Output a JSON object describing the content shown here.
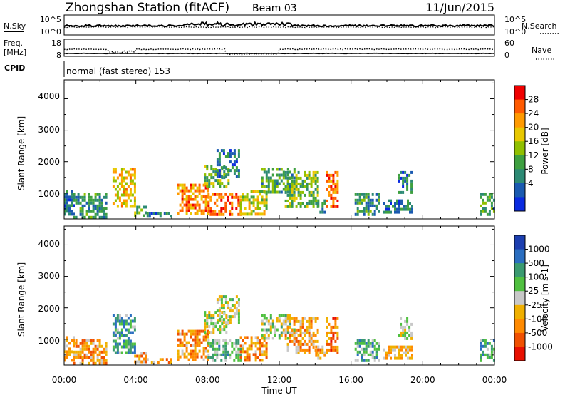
{
  "header": {
    "station": "Zhongshan Station (fitACF)",
    "beam": "Beam 03",
    "date": "11/Jun/2015"
  },
  "strip_sky": {
    "left_label": "N.Sky",
    "right_label": "N.Search",
    "ticks_left": [
      "10^5",
      "10^0"
    ],
    "ticks_right": [
      "10^5",
      "10^0"
    ]
  },
  "strip_freq": {
    "left_label_1": "Freq.",
    "left_label_2": "[MHz]",
    "right_label": "Nave",
    "ticks_left": [
      "18",
      "8"
    ],
    "ticks_right": [
      "60",
      "0"
    ]
  },
  "strip_cpid": {
    "left_label": "CPID",
    "mode_text": "normal (fast stereo) 153"
  },
  "x_axis": {
    "label": "Time UT",
    "ticks": [
      "00:00",
      "04:00",
      "08:00",
      "12:00",
      "16:00",
      "20:00",
      "00:00"
    ]
  },
  "panel_power": {
    "ylabel": "Slant Range [km]",
    "yticks": [
      "4000",
      "3000",
      "2000",
      "1000"
    ],
    "colorbar_label": "Power [dB]",
    "colorbar_ticks": [
      "28",
      "24",
      "20",
      "16",
      "12",
      "8",
      "4"
    ],
    "colors": [
      "#f00000",
      "#ff5a00",
      "#ff9a00",
      "#e8c800",
      "#90c000",
      "#3ea040",
      "#2c8a74",
      "#1a5ab0",
      "#0a2ae0"
    ]
  },
  "panel_velocity": {
    "ylabel": "Slant Range [km]",
    "yticks": [
      "4000",
      "3000",
      "2000",
      "1000"
    ],
    "colorbar_label": "Velocity [m s-1]",
    "colorbar_ticks": [
      "1000",
      "500",
      "100",
      "25",
      "-25",
      "-100",
      "-500",
      "-1000"
    ],
    "colors": [
      "#1c3fb0",
      "#2a6ec0",
      "#3a9a70",
      "#50c040",
      "#c8c8c8",
      "#f0b000",
      "#ff8a00",
      "#f05000",
      "#e81000"
    ]
  },
  "chart_data": {
    "type": "heatmap",
    "x_range_hours": [
      0,
      24
    ],
    "y_range_km": [
      180,
      4600
    ],
    "power_db_range": [
      0,
      32
    ],
    "velocity_range": [
      -1200,
      1200
    ],
    "echo_regions": [
      {
        "t0": 0.0,
        "t1": 0.5,
        "r0": 300,
        "r1": 1100,
        "power": 8,
        "vel": -300
      },
      {
        "t0": 0.5,
        "t1": 2.3,
        "r0": 250,
        "r1": 1000,
        "power": 10,
        "vel": -400
      },
      {
        "t0": 2.7,
        "t1": 4.0,
        "r0": 600,
        "r1": 1800,
        "power": 20,
        "vel": 500
      },
      {
        "t0": 3.9,
        "t1": 4.6,
        "r0": 250,
        "r1": 600,
        "power": 14,
        "vel": -400
      },
      {
        "t0": 4.6,
        "t1": 6.0,
        "r0": 250,
        "r1": 400,
        "power": 8,
        "vel": -350
      },
      {
        "t0": 6.3,
        "t1": 8.0,
        "r0": 350,
        "r1": 1300,
        "power": 24,
        "vel": -500
      },
      {
        "t0": 8.0,
        "t1": 9.8,
        "r0": 350,
        "r1": 1000,
        "power": 27,
        "vel": 300
      },
      {
        "t0": 7.8,
        "t1": 9.2,
        "r0": 1200,
        "r1": 1900,
        "power": 14,
        "vel": 20
      },
      {
        "t0": 8.5,
        "t1": 9.8,
        "r0": 1500,
        "r1": 2400,
        "power": 8,
        "vel": 20
      },
      {
        "t0": 9.8,
        "t1": 11.3,
        "r0": 300,
        "r1": 1100,
        "power": 18,
        "vel": -500
      },
      {
        "t0": 11.0,
        "t1": 12.8,
        "r0": 1000,
        "r1": 1800,
        "power": 12,
        "vel": 100
      },
      {
        "t0": 12.3,
        "t1": 14.2,
        "r0": 600,
        "r1": 1700,
        "power": 14,
        "vel": -400
      },
      {
        "t0": 14.0,
        "t1": 14.5,
        "r0": 400,
        "r1": 800,
        "power": 10,
        "vel": -300
      },
      {
        "t0": 14.6,
        "t1": 15.2,
        "r0": 600,
        "r1": 1700,
        "power": 26,
        "vel": -600
      },
      {
        "t0": 16.2,
        "t1": 17.6,
        "r0": 300,
        "r1": 1000,
        "power": 10,
        "vel": 400
      },
      {
        "t0": 17.8,
        "t1": 19.4,
        "r0": 400,
        "r1": 800,
        "power": 8,
        "vel": -300
      },
      {
        "t0": 18.6,
        "t1": 19.4,
        "r0": 1000,
        "r1": 1700,
        "power": 8,
        "vel": 20
      },
      {
        "t0": 23.2,
        "t1": 24.0,
        "r0": 300,
        "r1": 1000,
        "power": 12,
        "vel": 500
      }
    ]
  }
}
